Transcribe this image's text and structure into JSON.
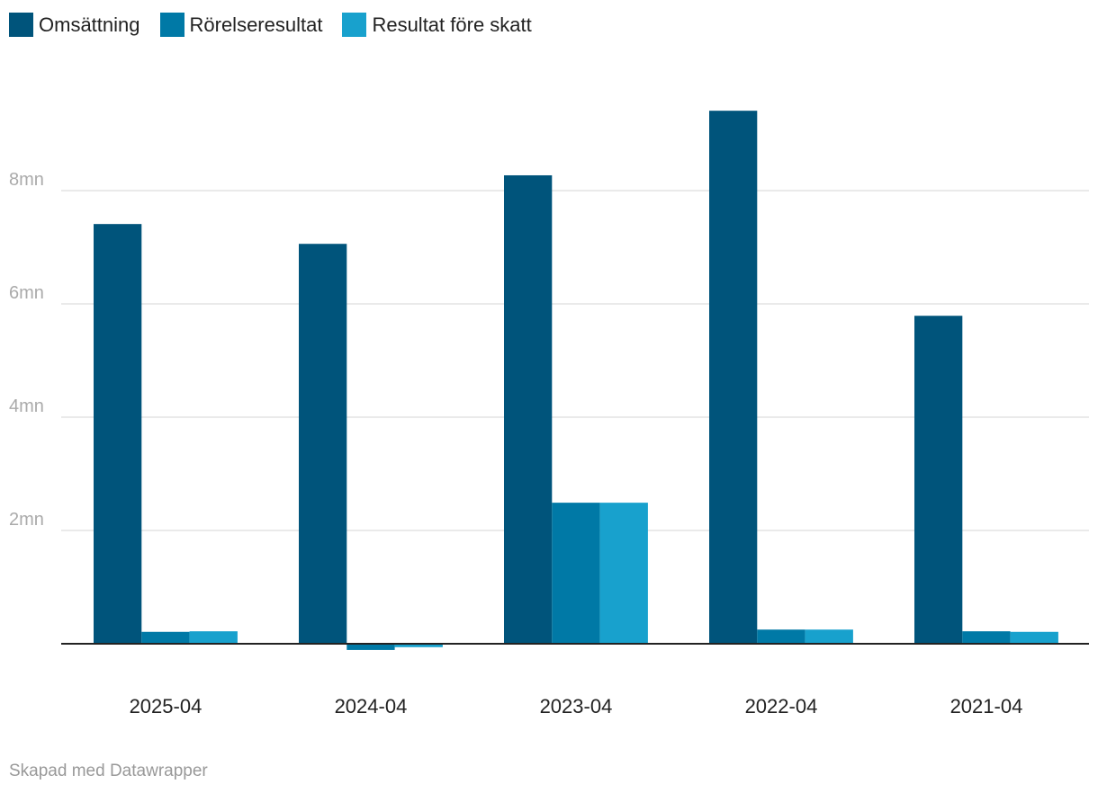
{
  "chart_data": {
    "type": "bar",
    "categories": [
      "2025-04",
      "2024-04",
      "2023-04",
      "2022-04",
      "2021-04"
    ],
    "series": [
      {
        "name": "Omsättning",
        "color": "#00547b",
        "values": [
          7.41,
          7.06,
          8.27,
          9.41,
          5.79
        ]
      },
      {
        "name": "Rörelseresultat",
        "color": "#0079a6",
        "values": [
          0.21,
          -0.11,
          2.49,
          0.25,
          0.22
        ]
      },
      {
        "name": "Resultat före skatt",
        "color": "#18a1cd",
        "values": [
          0.22,
          -0.06,
          2.49,
          0.25,
          0.21
        ]
      }
    ],
    "yticks": [
      {
        "v": 2,
        "label": "2mn"
      },
      {
        "v": 4,
        "label": "4mn"
      },
      {
        "v": 6,
        "label": "6mn"
      },
      {
        "v": 8,
        "label": "8mn"
      }
    ],
    "ylabel": "",
    "xlabel": "",
    "unit": "mn",
    "ylim": [
      -0.5,
      9.6
    ],
    "grid": true,
    "legend": "top-left"
  },
  "footer": "Skapad med Datawrapper"
}
